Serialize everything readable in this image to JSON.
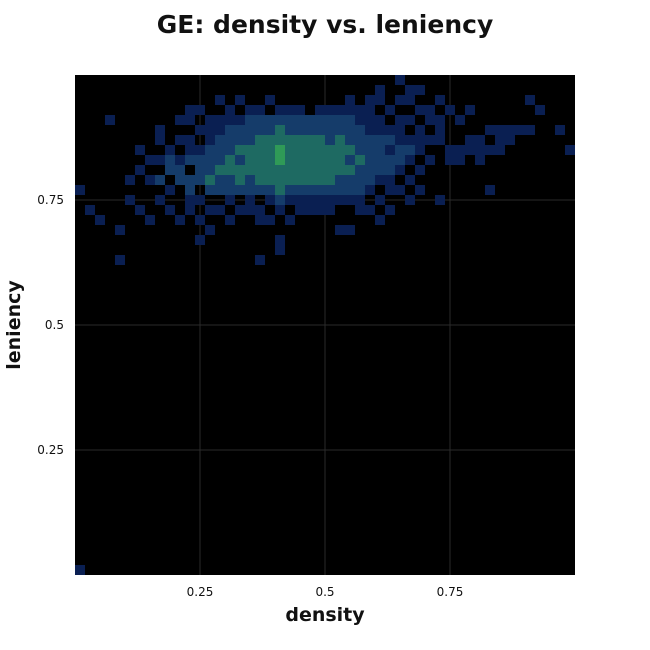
{
  "chart_data": {
    "type": "heatmap",
    "title": "GE: density vs. leniency",
    "xlabel": "density",
    "ylabel": "leniency",
    "xlim": [
      0,
      1
    ],
    "ylim": [
      0,
      1
    ],
    "xticks": [
      0.25,
      0.5,
      0.75
    ],
    "xtick_labels": [
      "0.25",
      "0.5",
      "0.75"
    ],
    "yticks": [
      0.25,
      0.5,
      0.75
    ],
    "ytick_labels": [
      "0.25",
      "0.5",
      "0.75"
    ],
    "grid": true,
    "bins": 50,
    "background": "#000000",
    "colormap": [
      "#0a1f52",
      "#153c6a",
      "#1e6a62",
      "#2f9a57"
    ],
    "cells": [
      [
        0.01,
        0.01,
        1
      ],
      [
        0.01,
        0.77,
        1
      ],
      [
        0.03,
        0.73,
        1
      ],
      [
        0.05,
        0.71,
        1
      ],
      [
        0.09,
        0.69,
        1
      ],
      [
        0.09,
        0.63,
        1
      ],
      [
        0.11,
        0.75,
        1
      ],
      [
        0.11,
        0.79,
        1
      ],
      [
        0.13,
        0.81,
        1
      ],
      [
        0.13,
        0.85,
        1
      ],
      [
        0.13,
        0.73,
        1
      ],
      [
        0.07,
        0.91,
        1
      ],
      [
        0.15,
        0.79,
        1
      ],
      [
        0.15,
        0.83,
        1
      ],
      [
        0.15,
        0.71,
        1
      ],
      [
        0.17,
        0.75,
        1
      ],
      [
        0.17,
        0.79,
        2
      ],
      [
        0.17,
        0.83,
        1
      ],
      [
        0.17,
        0.87,
        1
      ],
      [
        0.17,
        0.89,
        1
      ],
      [
        0.19,
        0.77,
        1
      ],
      [
        0.19,
        0.81,
        2
      ],
      [
        0.19,
        0.85,
        1
      ],
      [
        0.19,
        0.73,
        1
      ],
      [
        0.19,
        0.83,
        2
      ],
      [
        0.21,
        0.79,
        2
      ],
      [
        0.21,
        0.81,
        2
      ],
      [
        0.21,
        0.83,
        1
      ],
      [
        0.21,
        0.87,
        1
      ],
      [
        0.21,
        0.91,
        1
      ],
      [
        0.21,
        0.71,
        1
      ],
      [
        0.23,
        0.77,
        2
      ],
      [
        0.23,
        0.79,
        2
      ],
      [
        0.23,
        0.83,
        2
      ],
      [
        0.23,
        0.85,
        1
      ],
      [
        0.23,
        0.87,
        1
      ],
      [
        0.23,
        0.91,
        1
      ],
      [
        0.23,
        0.93,
        1
      ],
      [
        0.23,
        0.75,
        1
      ],
      [
        0.23,
        0.73,
        1
      ],
      [
        0.25,
        0.67,
        1
      ],
      [
        0.25,
        0.79,
        2
      ],
      [
        0.25,
        0.81,
        2
      ],
      [
        0.25,
        0.83,
        2
      ],
      [
        0.25,
        0.85,
        1
      ],
      [
        0.25,
        0.89,
        1
      ],
      [
        0.25,
        0.93,
        1
      ],
      [
        0.25,
        0.71,
        1
      ],
      [
        0.25,
        0.75,
        1
      ],
      [
        0.27,
        0.77,
        2
      ],
      [
        0.27,
        0.79,
        3
      ],
      [
        0.27,
        0.81,
        2
      ],
      [
        0.27,
        0.83,
        2
      ],
      [
        0.27,
        0.85,
        2
      ],
      [
        0.27,
        0.87,
        1
      ],
      [
        0.27,
        0.89,
        1
      ],
      [
        0.27,
        0.91,
        1
      ],
      [
        0.27,
        0.73,
        1
      ],
      [
        0.27,
        0.69,
        1
      ],
      [
        0.29,
        0.77,
        2
      ],
      [
        0.29,
        0.79,
        2
      ],
      [
        0.29,
        0.81,
        3
      ],
      [
        0.29,
        0.83,
        2
      ],
      [
        0.29,
        0.85,
        2
      ],
      [
        0.29,
        0.87,
        2
      ],
      [
        0.29,
        0.89,
        1
      ],
      [
        0.29,
        0.91,
        1
      ],
      [
        0.29,
        0.95,
        1
      ],
      [
        0.29,
        0.73,
        1
      ],
      [
        0.31,
        0.77,
        2
      ],
      [
        0.31,
        0.79,
        2
      ],
      [
        0.31,
        0.81,
        3
      ],
      [
        0.31,
        0.83,
        3
      ],
      [
        0.31,
        0.85,
        2
      ],
      [
        0.31,
        0.87,
        2
      ],
      [
        0.31,
        0.89,
        2
      ],
      [
        0.31,
        0.91,
        1
      ],
      [
        0.31,
        0.93,
        1
      ],
      [
        0.31,
        0.75,
        1
      ],
      [
        0.31,
        0.71,
        1
      ],
      [
        0.33,
        0.77,
        2
      ],
      [
        0.33,
        0.79,
        3
      ],
      [
        0.33,
        0.81,
        3
      ],
      [
        0.33,
        0.83,
        2
      ],
      [
        0.33,
        0.85,
        3
      ],
      [
        0.33,
        0.87,
        2
      ],
      [
        0.33,
        0.89,
        2
      ],
      [
        0.33,
        0.91,
        1
      ],
      [
        0.33,
        0.95,
        1
      ],
      [
        0.33,
        0.73,
        1
      ],
      [
        0.35,
        0.77,
        2
      ],
      [
        0.35,
        0.79,
        2
      ],
      [
        0.35,
        0.81,
        3
      ],
      [
        0.35,
        0.83,
        3
      ],
      [
        0.35,
        0.85,
        3
      ],
      [
        0.35,
        0.87,
        2
      ],
      [
        0.35,
        0.89,
        2
      ],
      [
        0.35,
        0.91,
        2
      ],
      [
        0.35,
        0.93,
        1
      ],
      [
        0.35,
        0.75,
        1
      ],
      [
        0.35,
        0.73,
        1
      ],
      [
        0.37,
        0.77,
        2
      ],
      [
        0.37,
        0.79,
        3
      ],
      [
        0.37,
        0.81,
        3
      ],
      [
        0.37,
        0.83,
        3
      ],
      [
        0.37,
        0.85,
        3
      ],
      [
        0.37,
        0.87,
        3
      ],
      [
        0.37,
        0.89,
        2
      ],
      [
        0.37,
        0.91,
        2
      ],
      [
        0.37,
        0.93,
        1
      ],
      [
        0.37,
        0.73,
        1
      ],
      [
        0.37,
        0.71,
        1
      ],
      [
        0.39,
        0.77,
        2
      ],
      [
        0.39,
        0.79,
        3
      ],
      [
        0.39,
        0.81,
        3
      ],
      [
        0.39,
        0.83,
        3
      ],
      [
        0.39,
        0.85,
        3
      ],
      [
        0.39,
        0.87,
        3
      ],
      [
        0.39,
        0.89,
        2
      ],
      [
        0.39,
        0.91,
        2
      ],
      [
        0.39,
        0.95,
        1
      ],
      [
        0.39,
        0.75,
        1
      ],
      [
        0.39,
        0.71,
        1
      ],
      [
        0.37,
        0.63,
        1
      ],
      [
        0.41,
        0.77,
        3
      ],
      [
        0.41,
        0.79,
        3
      ],
      [
        0.41,
        0.81,
        3
      ],
      [
        0.41,
        0.83,
        4
      ],
      [
        0.41,
        0.85,
        4
      ],
      [
        0.41,
        0.87,
        3
      ],
      [
        0.41,
        0.89,
        3
      ],
      [
        0.41,
        0.91,
        2
      ],
      [
        0.41,
        0.93,
        1
      ],
      [
        0.41,
        0.75,
        2
      ],
      [
        0.41,
        0.73,
        1
      ],
      [
        0.41,
        0.67,
        1
      ],
      [
        0.41,
        0.65,
        1
      ],
      [
        0.43,
        0.77,
        2
      ],
      [
        0.43,
        0.79,
        3
      ],
      [
        0.43,
        0.81,
        3
      ],
      [
        0.43,
        0.83,
        3
      ],
      [
        0.43,
        0.85,
        3
      ],
      [
        0.43,
        0.87,
        3
      ],
      [
        0.43,
        0.89,
        2
      ],
      [
        0.43,
        0.91,
        2
      ],
      [
        0.43,
        0.93,
        1
      ],
      [
        0.43,
        0.75,
        1
      ],
      [
        0.43,
        0.71,
        1
      ],
      [
        0.45,
        0.77,
        2
      ],
      [
        0.45,
        0.79,
        3
      ],
      [
        0.45,
        0.81,
        3
      ],
      [
        0.45,
        0.83,
        3
      ],
      [
        0.45,
        0.85,
        3
      ],
      [
        0.45,
        0.87,
        3
      ],
      [
        0.45,
        0.89,
        2
      ],
      [
        0.45,
        0.91,
        2
      ],
      [
        0.45,
        0.93,
        1
      ],
      [
        0.45,
        0.75,
        1
      ],
      [
        0.45,
        0.73,
        1
      ],
      [
        0.47,
        0.77,
        2
      ],
      [
        0.47,
        0.79,
        3
      ],
      [
        0.47,
        0.81,
        3
      ],
      [
        0.47,
        0.83,
        3
      ],
      [
        0.47,
        0.85,
        3
      ],
      [
        0.47,
        0.87,
        3
      ],
      [
        0.47,
        0.89,
        2
      ],
      [
        0.47,
        0.91,
        2
      ],
      [
        0.47,
        0.75,
        1
      ],
      [
        0.47,
        0.73,
        1
      ],
      [
        0.49,
        0.77,
        2
      ],
      [
        0.49,
        0.79,
        3
      ],
      [
        0.49,
        0.81,
        3
      ],
      [
        0.49,
        0.83,
        3
      ],
      [
        0.49,
        0.85,
        3
      ],
      [
        0.49,
        0.87,
        3
      ],
      [
        0.49,
        0.89,
        2
      ],
      [
        0.49,
        0.91,
        2
      ],
      [
        0.49,
        0.93,
        1
      ],
      [
        0.49,
        0.75,
        1
      ],
      [
        0.49,
        0.73,
        1
      ],
      [
        0.51,
        0.77,
        2
      ],
      [
        0.51,
        0.79,
        3
      ],
      [
        0.51,
        0.81,
        3
      ],
      [
        0.51,
        0.83,
        3
      ],
      [
        0.51,
        0.85,
        3
      ],
      [
        0.51,
        0.87,
        2
      ],
      [
        0.51,
        0.89,
        2
      ],
      [
        0.51,
        0.91,
        2
      ],
      [
        0.51,
        0.93,
        1
      ],
      [
        0.51,
        0.75,
        1
      ],
      [
        0.51,
        0.73,
        1
      ],
      [
        0.53,
        0.77,
        2
      ],
      [
        0.53,
        0.79,
        2
      ],
      [
        0.53,
        0.81,
        3
      ],
      [
        0.53,
        0.83,
        3
      ],
      [
        0.53,
        0.85,
        3
      ],
      [
        0.53,
        0.87,
        3
      ],
      [
        0.53,
        0.89,
        2
      ],
      [
        0.53,
        0.91,
        2
      ],
      [
        0.53,
        0.93,
        1
      ],
      [
        0.53,
        0.75,
        1
      ],
      [
        0.53,
        0.69,
        1
      ],
      [
        0.55,
        0.77,
        2
      ],
      [
        0.55,
        0.79,
        2
      ],
      [
        0.55,
        0.81,
        3
      ],
      [
        0.55,
        0.83,
        2
      ],
      [
        0.55,
        0.85,
        3
      ],
      [
        0.55,
        0.87,
        2
      ],
      [
        0.55,
        0.89,
        2
      ],
      [
        0.55,
        0.91,
        2
      ],
      [
        0.55,
        0.93,
        1
      ],
      [
        0.55,
        0.95,
        1
      ],
      [
        0.55,
        0.75,
        1
      ],
      [
        0.55,
        0.69,
        1
      ],
      [
        0.57,
        0.73,
        1
      ],
      [
        0.57,
        0.77,
        2
      ],
      [
        0.57,
        0.79,
        2
      ],
      [
        0.57,
        0.81,
        2
      ],
      [
        0.57,
        0.83,
        3
      ],
      [
        0.57,
        0.85,
        2
      ],
      [
        0.57,
        0.87,
        2
      ],
      [
        0.57,
        0.89,
        2
      ],
      [
        0.57,
        0.91,
        1
      ],
      [
        0.57,
        0.93,
        1
      ],
      [
        0.57,
        0.75,
        1
      ],
      [
        0.59,
        0.77,
        1
      ],
      [
        0.59,
        0.79,
        2
      ],
      [
        0.59,
        0.81,
        2
      ],
      [
        0.59,
        0.83,
        2
      ],
      [
        0.59,
        0.85,
        2
      ],
      [
        0.59,
        0.87,
        2
      ],
      [
        0.59,
        0.89,
        1
      ],
      [
        0.59,
        0.91,
        1
      ],
      [
        0.59,
        0.93,
        1
      ],
      [
        0.59,
        0.95,
        1
      ],
      [
        0.59,
        0.73,
        1
      ],
      [
        0.61,
        0.79,
        1
      ],
      [
        0.61,
        0.81,
        2
      ],
      [
        0.61,
        0.83,
        2
      ],
      [
        0.61,
        0.85,
        2
      ],
      [
        0.61,
        0.87,
        2
      ],
      [
        0.61,
        0.89,
        1
      ],
      [
        0.61,
        0.91,
        1
      ],
      [
        0.61,
        0.95,
        1
      ],
      [
        0.61,
        0.97,
        1
      ],
      [
        0.61,
        0.75,
        1
      ],
      [
        0.61,
        0.71,
        1
      ],
      [
        0.63,
        0.79,
        1
      ],
      [
        0.63,
        0.81,
        2
      ],
      [
        0.63,
        0.83,
        2
      ],
      [
        0.63,
        0.85,
        1
      ],
      [
        0.63,
        0.87,
        2
      ],
      [
        0.63,
        0.89,
        1
      ],
      [
        0.63,
        0.93,
        1
      ],
      [
        0.63,
        0.77,
        1
      ],
      [
        0.63,
        0.73,
        1
      ],
      [
        0.65,
        0.81,
        1
      ],
      [
        0.65,
        0.83,
        2
      ],
      [
        0.65,
        0.85,
        2
      ],
      [
        0.65,
        0.87,
        1
      ],
      [
        0.65,
        0.89,
        1
      ],
      [
        0.65,
        0.91,
        1
      ],
      [
        0.65,
        0.95,
        1
      ],
      [
        0.65,
        0.99,
        1
      ],
      [
        0.65,
        0.77,
        1
      ],
      [
        0.67,
        0.79,
        1
      ],
      [
        0.67,
        0.83,
        1
      ],
      [
        0.67,
        0.85,
        2
      ],
      [
        0.67,
        0.87,
        1
      ],
      [
        0.67,
        0.91,
        1
      ],
      [
        0.67,
        0.95,
        1
      ],
      [
        0.67,
        0.97,
        1
      ],
      [
        0.67,
        0.75,
        1
      ],
      [
        0.69,
        0.81,
        1
      ],
      [
        0.69,
        0.85,
        1
      ],
      [
        0.69,
        0.87,
        1
      ],
      [
        0.69,
        0.89,
        1
      ],
      [
        0.69,
        0.93,
        1
      ],
      [
        0.69,
        0.97,
        1
      ],
      [
        0.69,
        0.77,
        1
      ],
      [
        0.71,
        0.83,
        1
      ],
      [
        0.71,
        0.87,
        1
      ],
      [
        0.71,
        0.91,
        1
      ],
      [
        0.71,
        0.93,
        1
      ],
      [
        0.73,
        0.87,
        1
      ],
      [
        0.73,
        0.89,
        1
      ],
      [
        0.73,
        0.91,
        1
      ],
      [
        0.73,
        0.95,
        1
      ],
      [
        0.73,
        0.75,
        1
      ],
      [
        0.75,
        0.83,
        1
      ],
      [
        0.75,
        0.85,
        1
      ],
      [
        0.75,
        0.93,
        1
      ],
      [
        0.77,
        0.83,
        1
      ],
      [
        0.77,
        0.85,
        1
      ],
      [
        0.77,
        0.91,
        1
      ],
      [
        0.79,
        0.85,
        1
      ],
      [
        0.79,
        0.87,
        1
      ],
      [
        0.79,
        0.93,
        1
      ],
      [
        0.81,
        0.83,
        1
      ],
      [
        0.81,
        0.85,
        1
      ],
      [
        0.81,
        0.87,
        1
      ],
      [
        0.83,
        0.85,
        1
      ],
      [
        0.83,
        0.77,
        1
      ],
      [
        0.85,
        0.85,
        1
      ],
      [
        0.85,
        0.87,
        1
      ],
      [
        0.87,
        0.87,
        1
      ],
      [
        0.87,
        0.89,
        1
      ],
      [
        0.89,
        0.89,
        1
      ],
      [
        0.91,
        0.89,
        1
      ],
      [
        0.83,
        0.89,
        1
      ],
      [
        0.85,
        0.89,
        1
      ],
      [
        0.91,
        0.95,
        1
      ],
      [
        0.93,
        0.93,
        1
      ],
      [
        0.97,
        0.89,
        1
      ],
      [
        0.99,
        0.85,
        1
      ]
    ]
  }
}
